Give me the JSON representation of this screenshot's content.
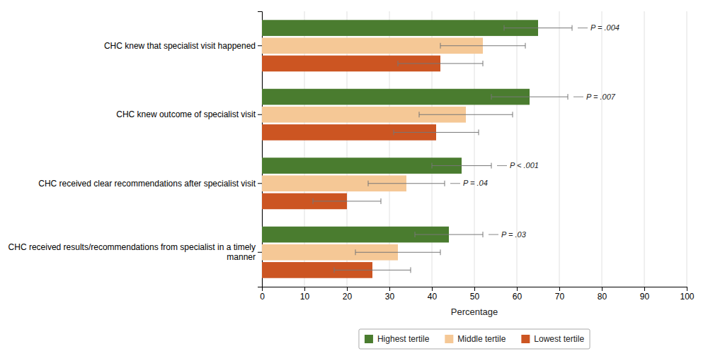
{
  "chart_data": {
    "type": "bar",
    "orientation": "horizontal",
    "categories": [
      "CHC knew that specialist visit happened",
      "CHC knew outcome of specialist visit",
      "CHC received clear recommendations after specialist visit",
      "CHC received results/recommendations from specialist in a timely\nmanner"
    ],
    "series": [
      {
        "name": "Highest tertile",
        "color": "#4a7c2f",
        "values": [
          65,
          63,
          47,
          44
        ],
        "errors": [
          8,
          9,
          7,
          8
        ],
        "p_values": [
          "P = .004",
          "P = .007",
          "P < .001",
          "P = .03"
        ]
      },
      {
        "name": "Middle tertile",
        "color": "#f5c896",
        "values": [
          52,
          48,
          34,
          32
        ],
        "errors": [
          10,
          11,
          9,
          10
        ],
        "p_values": [
          null,
          null,
          "P = .04",
          null
        ]
      },
      {
        "name": "Lowest tertile",
        "color": "#cc5522",
        "values": [
          42,
          41,
          20,
          26
        ],
        "errors": [
          10,
          10,
          8,
          9
        ]
      }
    ],
    "xlabel": "Percentage",
    "xlim": [
      0,
      100
    ],
    "xticks": [
      0,
      10,
      20,
      30,
      40,
      50,
      60,
      70,
      80,
      90,
      100
    ],
    "grid": true,
    "legend": "bottom"
  }
}
